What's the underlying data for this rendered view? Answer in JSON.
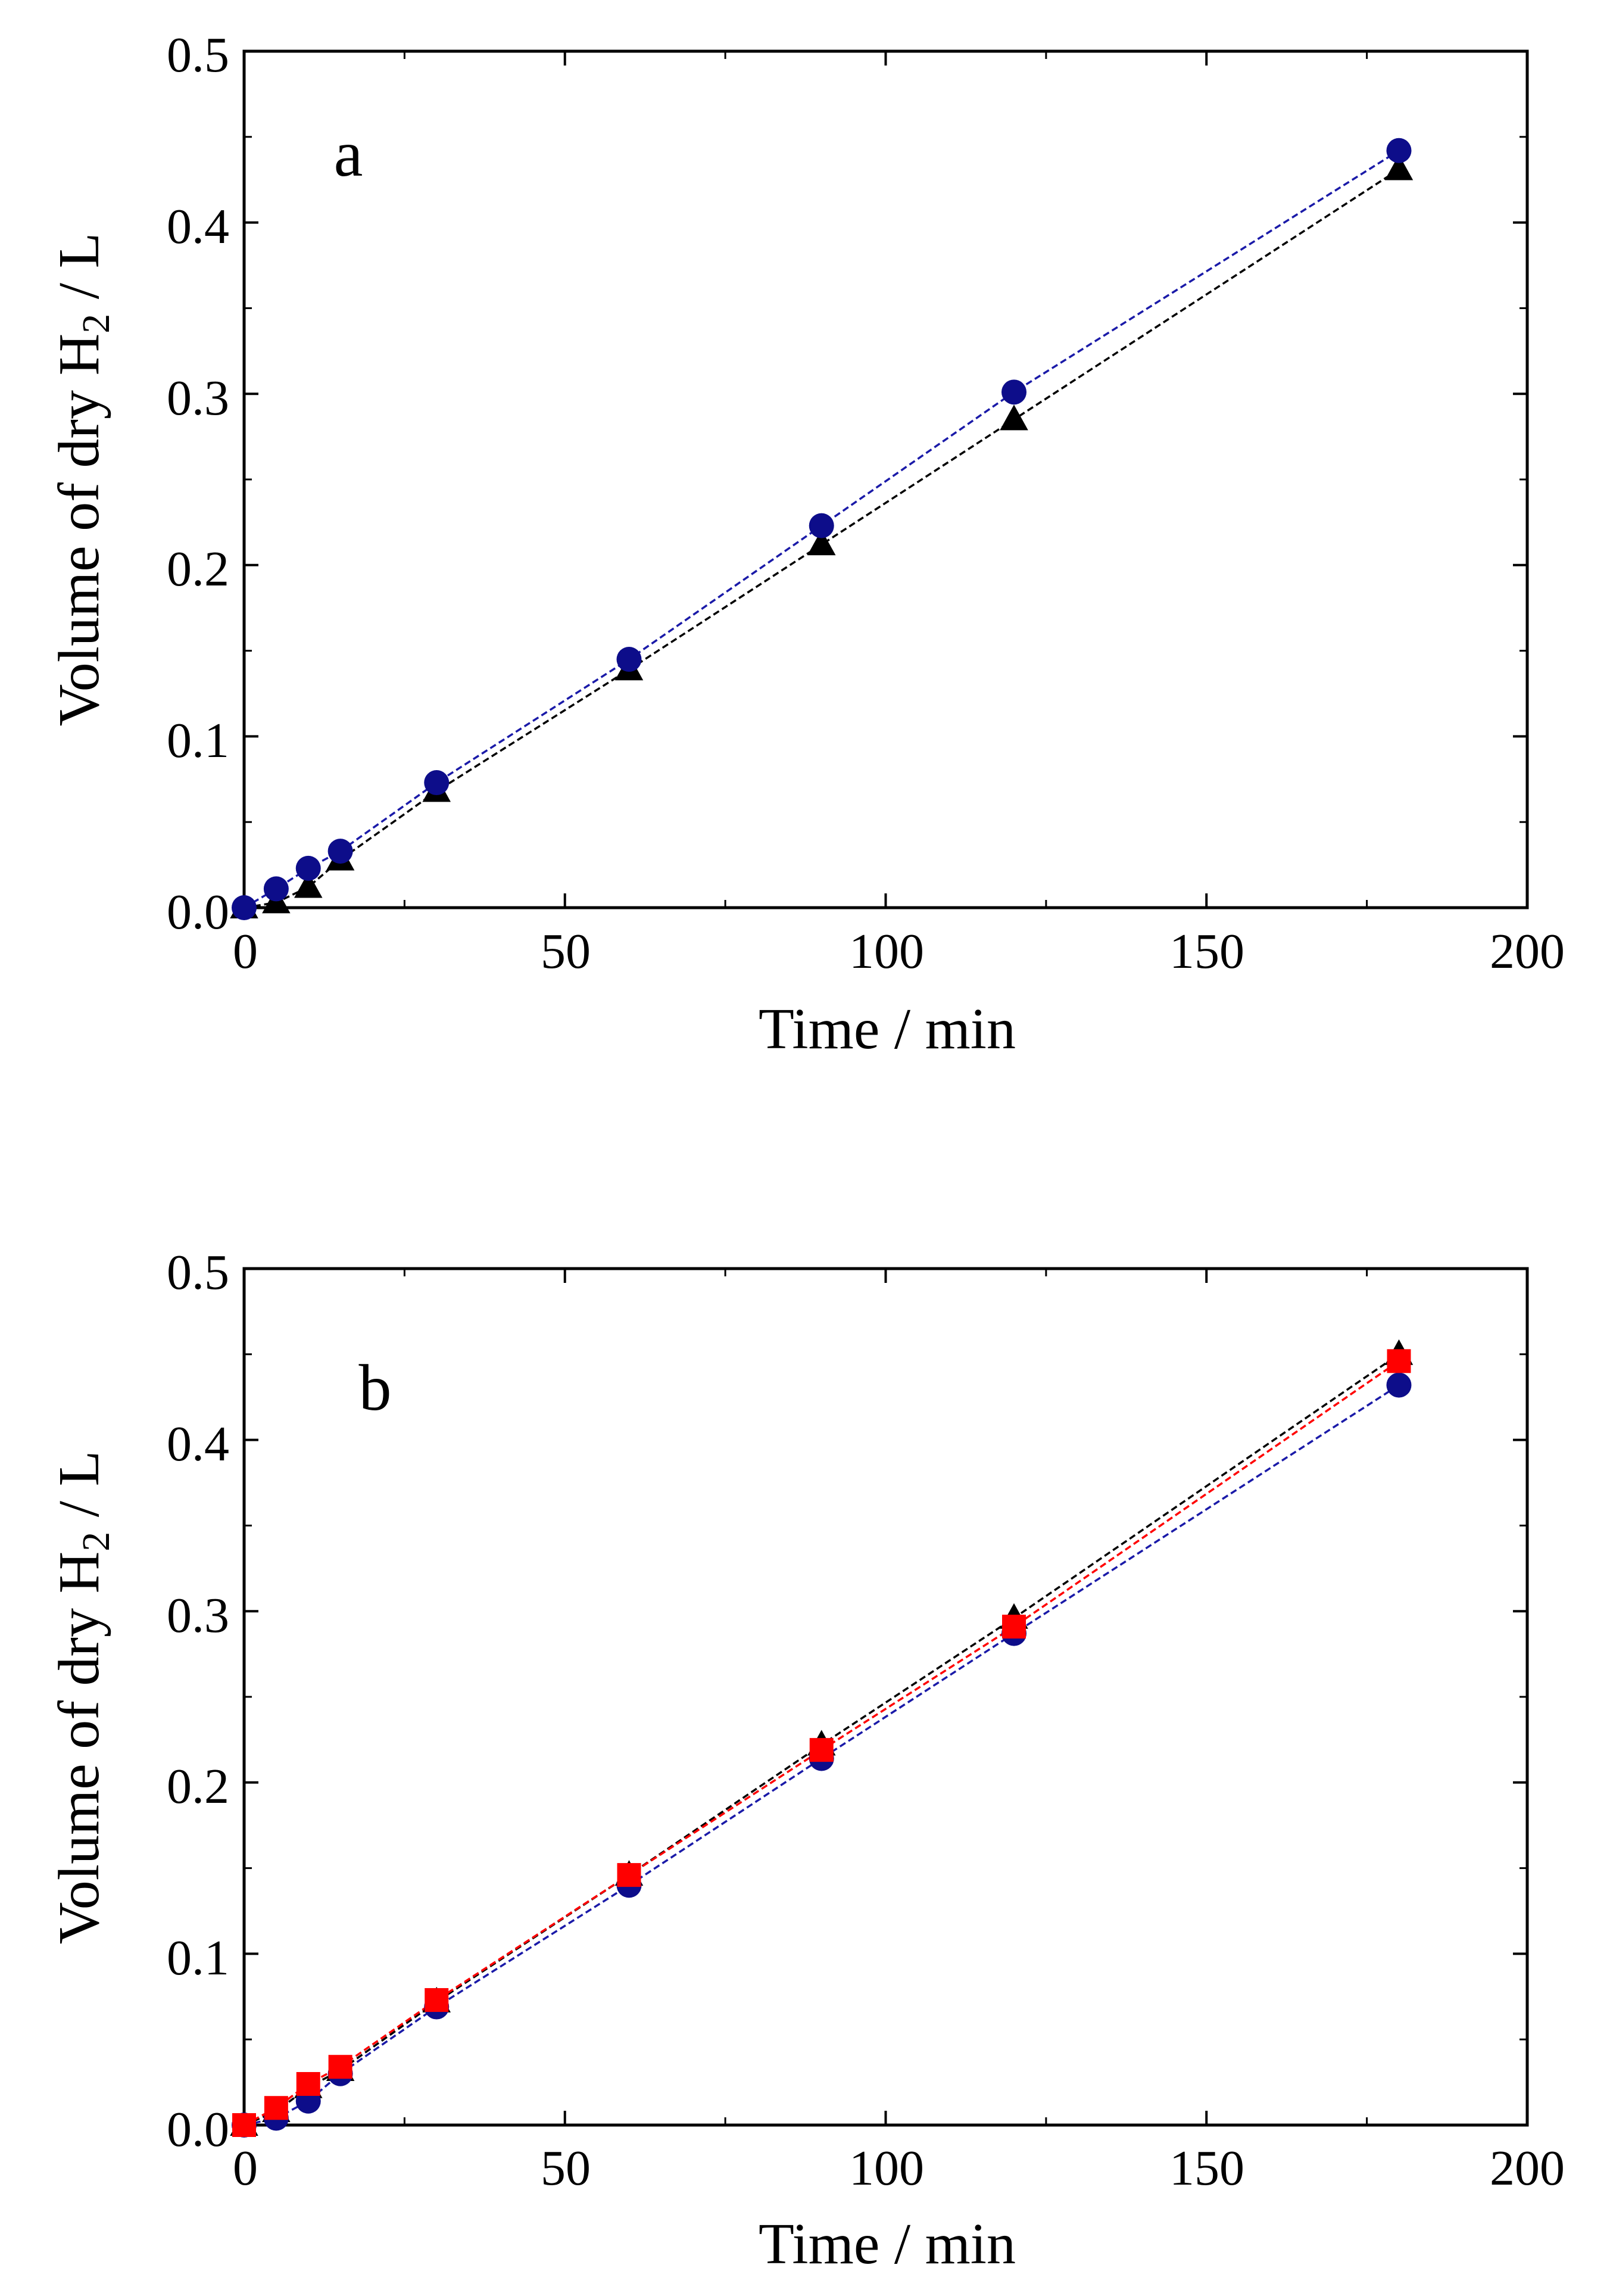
{
  "chart_data": [
    {
      "id": "a",
      "type": "line",
      "panel_label": "a",
      "title": "",
      "xlabel": "Time / min",
      "ylabel": {
        "before": "Volume of dry H",
        "subscript": "2",
        "after": " / L"
      },
      "xlim": [
        0,
        200
      ],
      "ylim": [
        0,
        0.5
      ],
      "xticks": [
        0,
        50,
        100,
        150,
        200
      ],
      "yticks": [
        0.0,
        0.1,
        0.2,
        0.3,
        0.4,
        0.5
      ],
      "xtick_labels": [
        "0",
        "50",
        "100",
        "150",
        "200"
      ],
      "ytick_labels": [
        "0.0",
        "0.1",
        "0.2",
        "0.3",
        "0.4",
        "0.5"
      ],
      "grid": false,
      "x": [
        0,
        5,
        10,
        15,
        30,
        60,
        90,
        120,
        180
      ],
      "series": [
        {
          "name": "triangle series",
          "marker": "triangle",
          "color": "#000000",
          "line_color": "#000000",
          "values": [
            0.0,
            0.003,
            0.012,
            0.028,
            0.068,
            0.139,
            0.212,
            0.285,
            0.431
          ]
        },
        {
          "name": "circle series",
          "marker": "circle",
          "color": "#0d0d8a",
          "line_color": "#1a1aa8",
          "values": [
            0.0,
            0.011,
            0.023,
            0.033,
            0.073,
            0.145,
            0.223,
            0.301,
            0.442
          ]
        }
      ]
    },
    {
      "id": "b",
      "type": "line",
      "panel_label": "b",
      "title": "",
      "xlabel": "Time / min",
      "ylabel": {
        "before": "Volume of dry H",
        "subscript": "2",
        "after": " / L"
      },
      "xlim": [
        0,
        200
      ],
      "ylim": [
        0,
        0.5
      ],
      "xticks": [
        0,
        50,
        100,
        150,
        200
      ],
      "yticks": [
        0.0,
        0.1,
        0.2,
        0.3,
        0.4,
        0.5
      ],
      "xtick_labels": [
        "0",
        "50",
        "100",
        "150",
        "200"
      ],
      "ytick_labels": [
        "0.0",
        "0.1",
        "0.2",
        "0.3",
        "0.4",
        "0.5"
      ],
      "grid": false,
      "x": [
        0,
        5,
        10,
        15,
        30,
        60,
        90,
        120,
        180
      ],
      "series": [
        {
          "name": "triangle series",
          "marker": "triangle",
          "color": "#000000",
          "line_color": "#000000",
          "values": [
            0.0,
            0.008,
            0.022,
            0.032,
            0.072,
            0.146,
            0.222,
            0.296,
            0.45
          ]
        },
        {
          "name": "circle series",
          "marker": "circle",
          "color": "#0d0d8a",
          "line_color": "#1a1aa8",
          "values": [
            0.0,
            0.004,
            0.014,
            0.03,
            0.069,
            0.14,
            0.214,
            0.287,
            0.432
          ]
        },
        {
          "name": "square series",
          "marker": "square",
          "color": "#ff0000",
          "line_color": "#ff0000",
          "values": [
            0.0,
            0.01,
            0.024,
            0.034,
            0.073,
            0.146,
            0.219,
            0.291,
            0.446
          ]
        }
      ]
    }
  ]
}
